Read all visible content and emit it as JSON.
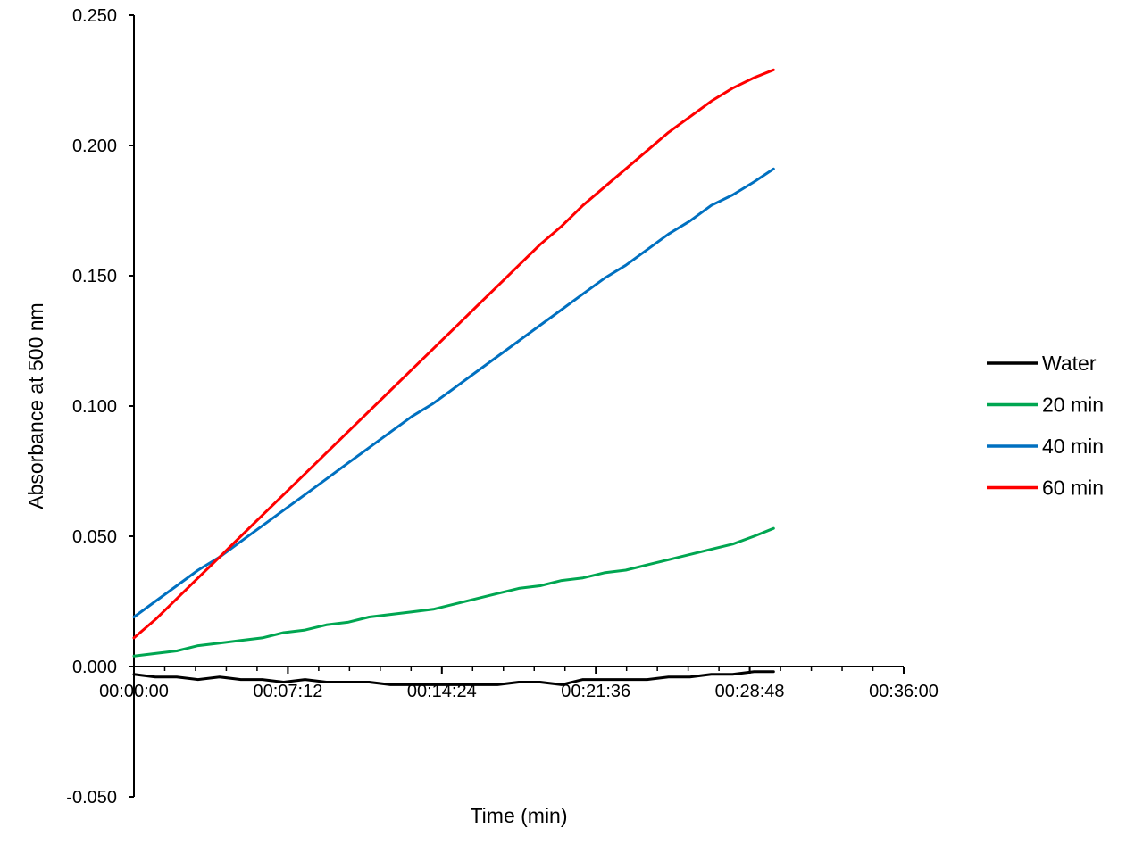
{
  "chart_data": {
    "type": "line",
    "xlabel": "Time (min)",
    "ylabel": "Absorbance at 500 nm",
    "xlim": [
      0,
      2160
    ],
    "ylim": [
      -0.05,
      0.25
    ],
    "x_ticks": [
      0,
      432,
      864,
      1296,
      1728,
      2160
    ],
    "x_tick_labels": [
      "00:00:00",
      "00:07:12",
      "00:14:24",
      "00:21:36",
      "00:28:48",
      "00:36:00"
    ],
    "x_tick_unit": "seconds",
    "y_ticks": [
      -0.05,
      0.0,
      0.05,
      0.1,
      0.15,
      0.2,
      0.25
    ],
    "y_tick_labels": [
      "-0.050",
      "0.000",
      "0.050",
      "0.100",
      "0.150",
      "0.200",
      "0.250"
    ],
    "grid": false,
    "legend_position": "right",
    "series": [
      {
        "name": "Water",
        "color": "#000000",
        "x": [
          0,
          60,
          120,
          180,
          240,
          300,
          360,
          420,
          480,
          540,
          600,
          660,
          720,
          780,
          840,
          900,
          960,
          1020,
          1080,
          1140,
          1200,
          1260,
          1320,
          1380,
          1440,
          1500,
          1560,
          1620,
          1680,
          1740,
          1795
        ],
        "y": [
          -0.003,
          -0.004,
          -0.004,
          -0.005,
          -0.004,
          -0.005,
          -0.005,
          -0.006,
          -0.005,
          -0.006,
          -0.006,
          -0.006,
          -0.007,
          -0.007,
          -0.007,
          -0.007,
          -0.007,
          -0.007,
          -0.006,
          -0.006,
          -0.007,
          -0.005,
          -0.005,
          -0.005,
          -0.005,
          -0.004,
          -0.004,
          -0.003,
          -0.003,
          -0.002,
          -0.002
        ]
      },
      {
        "name": "20 min",
        "color": "#00a651",
        "x": [
          0,
          60,
          120,
          180,
          240,
          300,
          360,
          420,
          480,
          540,
          600,
          660,
          720,
          780,
          840,
          900,
          960,
          1020,
          1080,
          1140,
          1200,
          1260,
          1320,
          1380,
          1440,
          1500,
          1560,
          1620,
          1680,
          1740,
          1795
        ],
        "y": [
          0.004,
          0.005,
          0.006,
          0.008,
          0.009,
          0.01,
          0.011,
          0.013,
          0.014,
          0.016,
          0.017,
          0.019,
          0.02,
          0.021,
          0.022,
          0.024,
          0.026,
          0.028,
          0.03,
          0.031,
          0.033,
          0.034,
          0.036,
          0.037,
          0.039,
          0.041,
          0.043,
          0.045,
          0.047,
          0.05,
          0.053
        ]
      },
      {
        "name": "40 min",
        "color": "#0070c0",
        "x": [
          0,
          60,
          120,
          180,
          240,
          300,
          360,
          420,
          480,
          540,
          600,
          660,
          720,
          780,
          840,
          900,
          960,
          1020,
          1080,
          1140,
          1200,
          1260,
          1320,
          1380,
          1440,
          1500,
          1560,
          1620,
          1680,
          1740,
          1795
        ],
        "y": [
          0.019,
          0.025,
          0.031,
          0.037,
          0.042,
          0.048,
          0.054,
          0.06,
          0.066,
          0.072,
          0.078,
          0.084,
          0.09,
          0.096,
          0.101,
          0.107,
          0.113,
          0.119,
          0.125,
          0.131,
          0.137,
          0.143,
          0.149,
          0.154,
          0.16,
          0.166,
          0.171,
          0.177,
          0.181,
          0.186,
          0.191
        ]
      },
      {
        "name": "60 min",
        "color": "#ff0000",
        "x": [
          0,
          60,
          120,
          180,
          240,
          300,
          360,
          420,
          480,
          540,
          600,
          660,
          720,
          780,
          840,
          900,
          960,
          1020,
          1080,
          1140,
          1200,
          1260,
          1320,
          1380,
          1440,
          1500,
          1560,
          1620,
          1680,
          1740,
          1795
        ],
        "y": [
          0.011,
          0.018,
          0.026,
          0.034,
          0.042,
          0.05,
          0.058,
          0.066,
          0.074,
          0.082,
          0.09,
          0.098,
          0.106,
          0.114,
          0.122,
          0.13,
          0.138,
          0.146,
          0.154,
          0.162,
          0.169,
          0.177,
          0.184,
          0.191,
          0.198,
          0.205,
          0.211,
          0.217,
          0.222,
          0.226,
          0.229
        ]
      }
    ]
  }
}
